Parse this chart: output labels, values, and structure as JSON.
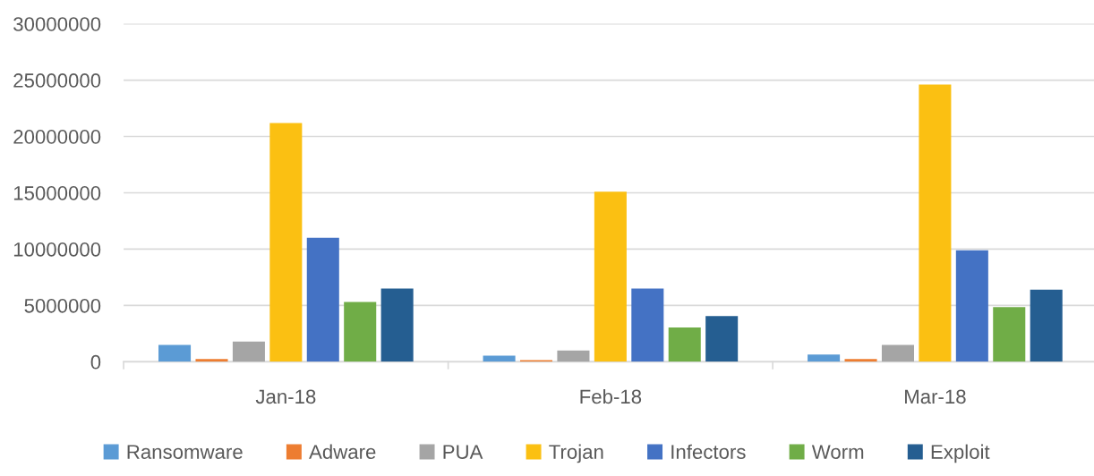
{
  "chart_data": {
    "type": "bar",
    "categories": [
      "Jan-18",
      "Feb-18",
      "Mar-18"
    ],
    "series": [
      {
        "name": "Ransomware",
        "color": "#5b9bd5",
        "values": [
          1500000,
          550000,
          650000
        ]
      },
      {
        "name": "Adware",
        "color": "#ed7d31",
        "values": [
          250000,
          150000,
          250000
        ]
      },
      {
        "name": "PUA",
        "color": "#a5a5a5",
        "values": [
          1800000,
          1000000,
          1500000
        ]
      },
      {
        "name": "Trojan",
        "color": "#fbc012",
        "values": [
          21200000,
          15100000,
          24600000
        ]
      },
      {
        "name": "Infectors",
        "color": "#4472c4",
        "values": [
          11000000,
          6500000,
          9900000
        ]
      },
      {
        "name": "Worm",
        "color": "#70ad47",
        "values": [
          5300000,
          3050000,
          4850000
        ]
      },
      {
        "name": "Exploit",
        "color": "#255e91",
        "values": [
          6500000,
          4050000,
          6400000
        ]
      }
    ],
    "ylim": [
      0,
      30000000
    ],
    "yticks": [
      0,
      5000000,
      10000000,
      15000000,
      20000000,
      25000000,
      30000000
    ],
    "grid": "y",
    "legend": "bottom"
  }
}
